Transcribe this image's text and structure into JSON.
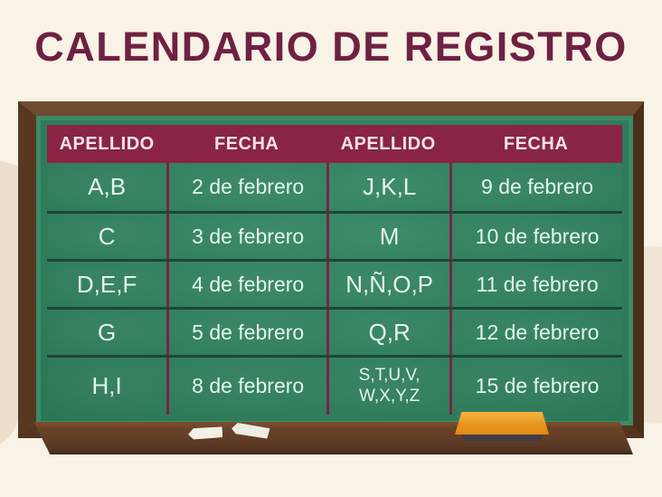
{
  "title": "CALENDARIO DE REGISTRO",
  "chart_data": {
    "type": "table",
    "title": "CALENDARIO DE REGISTRO",
    "columns": [
      "APELLIDO",
      "FECHA",
      "APELLIDO",
      "FECHA"
    ],
    "rows": [
      [
        "A,B",
        "2 de febrero",
        "J,K,L",
        "9 de febrero"
      ],
      [
        "C",
        "3 de febrero",
        "M",
        "10 de febrero"
      ],
      [
        "D,E,F",
        "4 de febrero",
        "N,Ñ,O,P",
        "11 de febrero"
      ],
      [
        "G",
        "5 de febrero",
        "Q,R",
        "12 de febrero"
      ],
      [
        "H,I",
        "8 de febrero",
        "S,T,U,V,\nW,X,Y,Z",
        "15 de febrero"
      ]
    ]
  },
  "scene": {
    "board": "green-chalkboard-with-wooden-frame",
    "tray": "chalk-tray",
    "items": [
      "chalk-piece",
      "chalk-piece",
      "orange-eraser"
    ]
  },
  "colors": {
    "background_cream": "#f8f2e7",
    "title_maroon": "#6e2140",
    "header_band_maroon": "#8a2445",
    "column_divider_maroon": "#7b2443",
    "board_green": "#2f7d5b",
    "row_divider_green": "#1f4537",
    "chalk_text": "#e3f4ea",
    "frame_brown": "#5e3b25",
    "eraser_orange": "#e8941d",
    "chalk_white": "#f3f0e7"
  }
}
